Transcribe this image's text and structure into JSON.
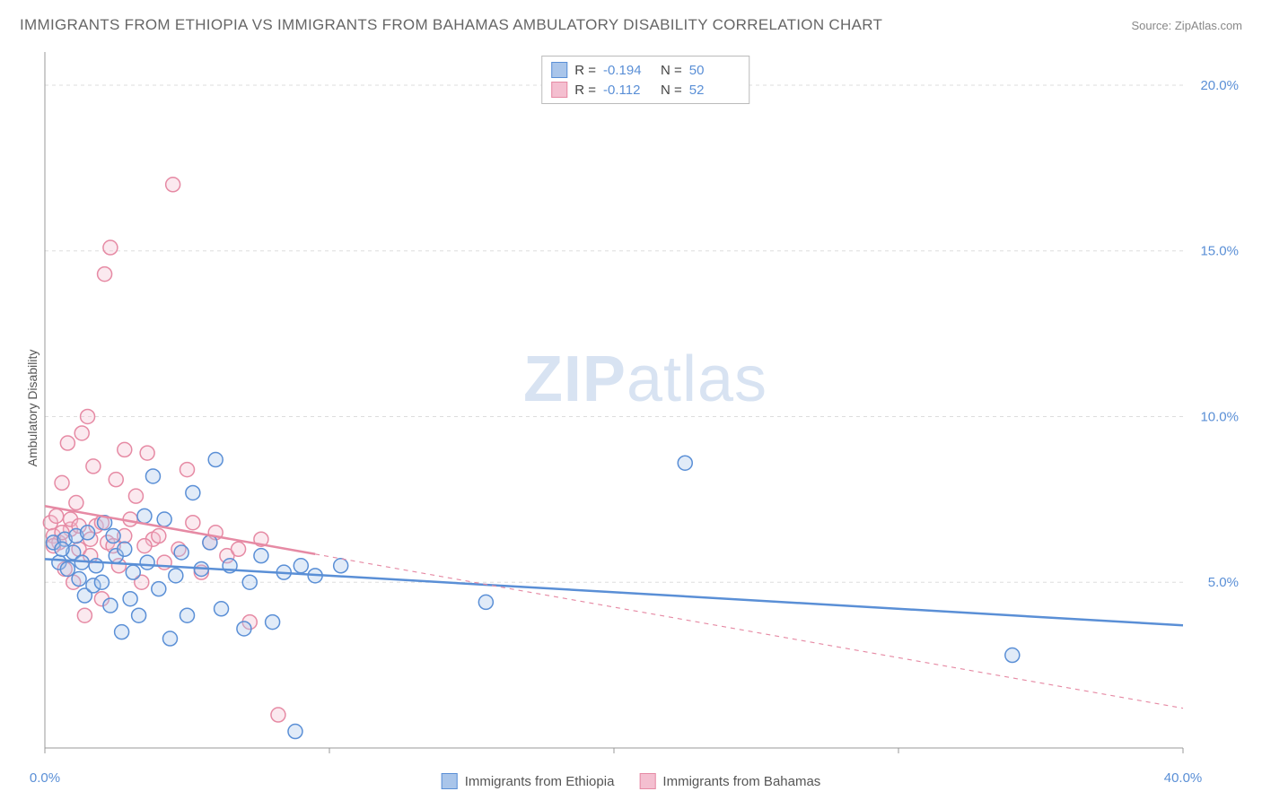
{
  "title": "IMMIGRANTS FROM ETHIOPIA VS IMMIGRANTS FROM BAHAMAS AMBULATORY DISABILITY CORRELATION CHART",
  "source": "Source: ZipAtlas.com",
  "watermark_a": "ZIP",
  "watermark_b": "atlas",
  "chart": {
    "type": "scatter",
    "background_color": "#ffffff",
    "grid_color": "#dddddd",
    "axis_color": "#999999",
    "text_color": "#555555",
    "tick_label_color": "#5a8fd6",
    "ylabel": "Ambulatory Disability",
    "ylabel_fontsize": 14,
    "title_fontsize": 17,
    "xlim": [
      0,
      40
    ],
    "ylim": [
      0,
      21
    ],
    "xtick_step": 10,
    "xtick_labels": {
      "0": "0.0%",
      "40": "40.0%"
    },
    "ytick_step": 5,
    "ytick_labels": {
      "5": "5.0%",
      "10": "10.0%",
      "15": "15.0%",
      "20": "20.0%"
    },
    "marker_radius": 8,
    "marker_fill_opacity": 0.35,
    "marker_stroke_width": 1.5,
    "line_width": 2.5,
    "series": [
      {
        "name": "Immigrants from Ethiopia",
        "color_stroke": "#5a8fd6",
        "color_fill": "#a9c5ea",
        "R": "-0.194",
        "N": "50",
        "trend": {
          "x1": 0,
          "y1": 5.7,
          "x2": 40,
          "y2": 3.7,
          "solid_until_x": 40
        },
        "points": [
          [
            0.3,
            6.2
          ],
          [
            0.5,
            5.6
          ],
          [
            0.7,
            6.3
          ],
          [
            0.8,
            5.4
          ],
          [
            1.0,
            5.9
          ],
          [
            1.1,
            6.4
          ],
          [
            1.2,
            5.1
          ],
          [
            1.4,
            4.6
          ],
          [
            1.5,
            6.5
          ],
          [
            1.7,
            4.9
          ],
          [
            1.8,
            5.5
          ],
          [
            2.0,
            5.0
          ],
          [
            2.1,
            6.8
          ],
          [
            2.3,
            4.3
          ],
          [
            2.5,
            5.8
          ],
          [
            2.7,
            3.5
          ],
          [
            2.8,
            6.0
          ],
          [
            3.0,
            4.5
          ],
          [
            3.1,
            5.3
          ],
          [
            3.3,
            4.0
          ],
          [
            3.5,
            7.0
          ],
          [
            3.6,
            5.6
          ],
          [
            3.8,
            8.2
          ],
          [
            4.0,
            4.8
          ],
          [
            4.2,
            6.9
          ],
          [
            4.4,
            3.3
          ],
          [
            4.6,
            5.2
          ],
          [
            4.8,
            5.9
          ],
          [
            5.0,
            4.0
          ],
          [
            5.2,
            7.7
          ],
          [
            5.5,
            5.4
          ],
          [
            5.8,
            6.2
          ],
          [
            6.0,
            8.7
          ],
          [
            6.2,
            4.2
          ],
          [
            6.5,
            5.5
          ],
          [
            7.0,
            3.6
          ],
          [
            7.2,
            5.0
          ],
          [
            7.6,
            5.8
          ],
          [
            8.0,
            3.8
          ],
          [
            8.4,
            5.3
          ],
          [
            8.8,
            0.5
          ],
          [
            9.0,
            5.5
          ],
          [
            9.5,
            5.2
          ],
          [
            10.4,
            5.5
          ],
          [
            15.5,
            4.4
          ],
          [
            22.5,
            8.6
          ],
          [
            34.0,
            2.8
          ],
          [
            0.6,
            6.0
          ],
          [
            1.3,
            5.6
          ],
          [
            2.4,
            6.4
          ]
        ]
      },
      {
        "name": "Immigrants from Bahamas",
        "color_stroke": "#e68aa4",
        "color_fill": "#f4bfd0",
        "R": "-0.112",
        "N": "52",
        "trend": {
          "x1": 0,
          "y1": 7.3,
          "x2": 40,
          "y2": 1.2,
          "solid_until_x": 9.5
        },
        "points": [
          [
            0.2,
            6.8
          ],
          [
            0.3,
            6.4
          ],
          [
            0.4,
            7.0
          ],
          [
            0.5,
            6.2
          ],
          [
            0.6,
            8.0
          ],
          [
            0.7,
            5.4
          ],
          [
            0.8,
            9.2
          ],
          [
            0.9,
            6.6
          ],
          [
            1.0,
            5.0
          ],
          [
            1.1,
            7.4
          ],
          [
            1.2,
            6.0
          ],
          [
            1.3,
            9.5
          ],
          [
            1.4,
            4.0
          ],
          [
            1.5,
            10.0
          ],
          [
            1.6,
            5.8
          ],
          [
            1.7,
            8.5
          ],
          [
            1.8,
            6.7
          ],
          [
            2.0,
            4.5
          ],
          [
            2.1,
            14.3
          ],
          [
            2.2,
            6.2
          ],
          [
            2.3,
            15.1
          ],
          [
            2.5,
            8.1
          ],
          [
            2.6,
            5.5
          ],
          [
            2.8,
            9.0
          ],
          [
            3.0,
            6.9
          ],
          [
            3.2,
            7.6
          ],
          [
            3.4,
            5.0
          ],
          [
            3.6,
            8.9
          ],
          [
            3.8,
            6.3
          ],
          [
            4.0,
            6.4
          ],
          [
            4.2,
            5.6
          ],
          [
            4.5,
            17.0
          ],
          [
            4.7,
            6.0
          ],
          [
            5.0,
            8.4
          ],
          [
            5.2,
            6.8
          ],
          [
            5.5,
            5.3
          ],
          [
            5.8,
            6.2
          ],
          [
            6.0,
            6.5
          ],
          [
            6.4,
            5.8
          ],
          [
            6.8,
            6.0
          ],
          [
            7.2,
            3.8
          ],
          [
            7.6,
            6.3
          ],
          [
            8.2,
            1.0
          ],
          [
            0.3,
            6.1
          ],
          [
            0.6,
            6.5
          ],
          [
            0.9,
            6.9
          ],
          [
            1.2,
            6.7
          ],
          [
            1.6,
            6.3
          ],
          [
            2.0,
            6.8
          ],
          [
            2.4,
            6.1
          ],
          [
            2.8,
            6.4
          ],
          [
            3.5,
            6.1
          ]
        ]
      }
    ]
  },
  "corr_legend": {
    "R_label": "R =",
    "N_label": "N ="
  },
  "bottom_legend": {}
}
